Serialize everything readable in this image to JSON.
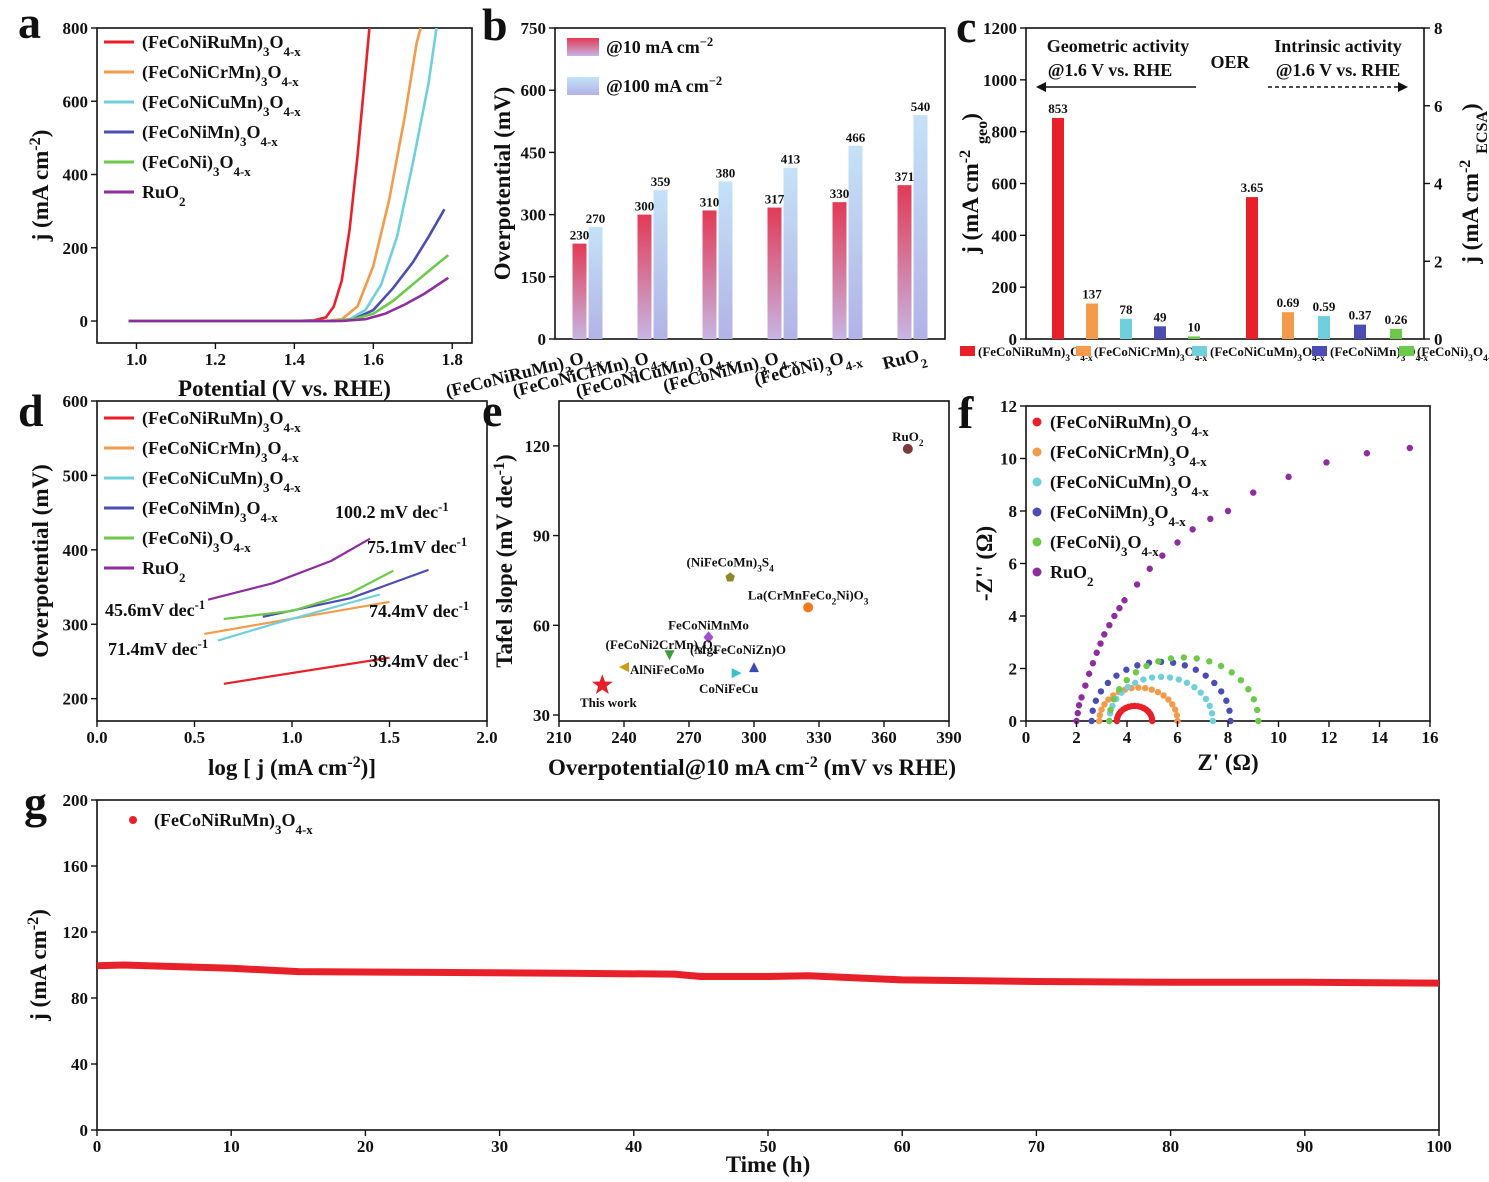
{
  "panels": {
    "a": "a",
    "b": "b",
    "c": "c",
    "d": "d",
    "e": "e",
    "f": "f",
    "g": "g"
  },
  "colors": {
    "FeCoNiRuMn": "#e8202a",
    "FeCoNiCrMn": "#f39a4b",
    "FeCoNiCuMn": "#6fd0dc",
    "FeCoNiMn": "#4b4db3",
    "FeCoNi": "#6cc94a",
    "RuO2": "#8e2d9e"
  },
  "chart_data": [
    {
      "panel": "a",
      "type": "line",
      "xlabel": "Potential (V vs. RHE)",
      "ylabel": "j (mA cm^-2)",
      "xlim": [
        0.9,
        1.85
      ],
      "ylim": [
        -60,
        800
      ],
      "xticks": [
        "1.0",
        "1.2",
        "1.4",
        "1.6",
        "1.8"
      ],
      "yticks": [
        "0",
        "200",
        "400",
        "600",
        "800"
      ],
      "series": [
        {
          "name": "(FeCoNiRuMn)3O4-x",
          "key": "FeCoNiRuMn",
          "points": [
            [
              0.98,
              0
            ],
            [
              1.4,
              0
            ],
            [
              1.45,
              2
            ],
            [
              1.48,
              10
            ],
            [
              1.5,
              40
            ],
            [
              1.52,
              110
            ],
            [
              1.54,
              250
            ],
            [
              1.56,
              450
            ],
            [
              1.58,
              680
            ],
            [
              1.59,
              800
            ]
          ]
        },
        {
          "name": "(FeCoNiCrMn)3O4-x",
          "key": "FeCoNiCrMn",
          "points": [
            [
              0.98,
              0
            ],
            [
              1.48,
              0
            ],
            [
              1.52,
              5
            ],
            [
              1.56,
              40
            ],
            [
              1.6,
              150
            ],
            [
              1.64,
              330
            ],
            [
              1.68,
              560
            ],
            [
              1.71,
              760
            ],
            [
              1.72,
              800
            ]
          ]
        },
        {
          "name": "(FeCoNiCuMn)3O4-x",
          "key": "FeCoNiCuMn",
          "points": [
            [
              0.98,
              0
            ],
            [
              1.5,
              0
            ],
            [
              1.54,
              5
            ],
            [
              1.58,
              30
            ],
            [
              1.62,
              100
            ],
            [
              1.66,
              230
            ],
            [
              1.7,
              430
            ],
            [
              1.74,
              650
            ],
            [
              1.76,
              800
            ]
          ]
        },
        {
          "name": "(FeCoNiMn)3O4-x",
          "key": "FeCoNiMn",
          "points": [
            [
              0.98,
              0
            ],
            [
              1.5,
              0
            ],
            [
              1.55,
              5
            ],
            [
              1.6,
              30
            ],
            [
              1.65,
              90
            ],
            [
              1.7,
              160
            ],
            [
              1.74,
              230
            ],
            [
              1.78,
              305
            ]
          ]
        },
        {
          "name": "(FeCoNi)3O4-x",
          "key": "FeCoNi",
          "points": [
            [
              0.98,
              0
            ],
            [
              1.5,
              0
            ],
            [
              1.55,
              5
            ],
            [
              1.6,
              20
            ],
            [
              1.65,
              55
            ],
            [
              1.7,
              100
            ],
            [
              1.75,
              145
            ],
            [
              1.79,
              180
            ]
          ]
        },
        {
          "name": "RuO2",
          "key": "RuO2",
          "points": [
            [
              0.98,
              0
            ],
            [
              1.52,
              0
            ],
            [
              1.58,
              5
            ],
            [
              1.63,
              20
            ],
            [
              1.68,
              45
            ],
            [
              1.73,
              75
            ],
            [
              1.79,
              118
            ]
          ]
        }
      ]
    },
    {
      "panel": "b",
      "type": "bar",
      "ylabel": "Overpotential (mV)",
      "ylim": [
        0,
        750
      ],
      "yticks": [
        "0",
        "150",
        "300",
        "450",
        "600",
        "750"
      ],
      "categories": [
        "(FeCoNiRuMn)3O4-x",
        "(FeCoNiCrMn)3O4-x",
        "(FeCoNiCuMn)3O4-x",
        "(FeCoNiMn)3O4-x",
        "(FeCoNi)3O4-x",
        "RuO2"
      ],
      "series": [
        {
          "name": "@10 mA cm-2",
          "values": [
            230,
            300,
            310,
            317,
            330,
            371
          ],
          "color": "#e23a55"
        },
        {
          "name": "@100 mA cm-2",
          "values": [
            270,
            359,
            380,
            413,
            466,
            540
          ],
          "color": "#a9c8ee"
        }
      ]
    },
    {
      "panel": "c",
      "type": "bar",
      "ylabel_left": "j (mA cm^-2 geo)",
      "ylabel_right": "j (mA cm^-2 ECSA)",
      "ylim_left": [
        0,
        1200
      ],
      "ylim_right": [
        0,
        8
      ],
      "yticks_left": [
        "0",
        "200",
        "400",
        "600",
        "800",
        "1000",
        "1200"
      ],
      "yticks_right": [
        "0",
        "2",
        "4",
        "6",
        "8"
      ],
      "title": "OER",
      "annot_left": [
        "Geometric activity",
        "@1.6 V vs. RHE"
      ],
      "annot_right": [
        "Intrinsic activity",
        "@1.6 V vs. RHE"
      ],
      "categories": [
        "(FeCoNiRuMn)3O4-x",
        "(FeCoNiCrMn)3O4-x",
        "(FeCoNiCuMn)3O4-x",
        "(FeCoNiMn)3O4-x",
        "(FeCoNi)3O4-x"
      ],
      "geometric": [
        853,
        137,
        78,
        49,
        10
      ],
      "geometric_labels": [
        "853",
        "137",
        "78",
        "49",
        "10"
      ],
      "intrinsic": [
        3.65,
        0.69,
        0.59,
        0.37,
        0.26
      ],
      "intrinsic_labels": [
        "3.65",
        "0.69",
        "0.59",
        "0.37",
        "0.26"
      ]
    },
    {
      "panel": "d",
      "type": "line",
      "xlabel": "log [ j (mA cm^-2)]",
      "ylabel": "Overpotential (mV)",
      "xlim": [
        0.0,
        2.0
      ],
      "ylim": [
        170,
        600
      ],
      "xticks": [
        "0.0",
        "0.5",
        "1.0",
        "1.5",
        "2.0"
      ],
      "yticks": [
        "200",
        "300",
        "400",
        "500",
        "600"
      ],
      "series": [
        {
          "name": "(FeCoNiRuMn)3O4-x",
          "key": "FeCoNiRuMn",
          "points": [
            [
              0.65,
              220
            ],
            [
              1.5,
              255
            ]
          ],
          "label": "39.4mV dec-1"
        },
        {
          "name": "(FeCoNiCrMn)3O4-x",
          "key": "FeCoNiCrMn",
          "points": [
            [
              0.55,
              287
            ],
            [
              1.5,
              330
            ]
          ],
          "label": "45.6mV dec-1"
        },
        {
          "name": "(FeCoNiCuMn)3O4-x",
          "key": "FeCoNiCuMn",
          "points": [
            [
              0.62,
              278
            ],
            [
              0.9,
              300
            ],
            [
              1.45,
              340
            ]
          ],
          "label": "71.4mV dec-1"
        },
        {
          "name": "(FeCoNiMn)3O4-x",
          "key": "FeCoNiMn",
          "points": [
            [
              0.85,
              310
            ],
            [
              1.3,
              335
            ],
            [
              1.7,
              373
            ]
          ],
          "label": "74.4mV dec-1"
        },
        {
          "name": "(FeCoNi)3O4-x",
          "key": "FeCoNi",
          "points": [
            [
              0.65,
              307
            ],
            [
              1.0,
              318
            ],
            [
              1.3,
              342
            ],
            [
              1.52,
              372
            ]
          ],
          "label": "75.1mV dec-1"
        },
        {
          "name": "RuO2",
          "key": "RuO2",
          "points": [
            [
              0.57,
              333
            ],
            [
              0.9,
              355
            ],
            [
              1.2,
              385
            ],
            [
              1.4,
              415
            ]
          ],
          "label": "100.2 mV dec-1"
        }
      ]
    },
    {
      "panel": "e",
      "type": "scatter",
      "xlabel": "Overpotential@10 mA cm^-2 (mV vs RHE)",
      "ylabel": "Tafel slope (mV dec^-1)",
      "xlim": [
        210,
        390
      ],
      "ylim": [
        28,
        135
      ],
      "xticks": [
        "210",
        "240",
        "270",
        "300",
        "330",
        "360",
        "390"
      ],
      "yticks": [
        "30",
        "60",
        "90",
        "120"
      ],
      "points": [
        {
          "label": "RuO2",
          "x": 371,
          "y": 119,
          "color": "#7a3a3a",
          "marker": "circle"
        },
        {
          "label": "(NiFeCoMn)3S4",
          "x": 289,
          "y": 76,
          "color": "#8a8a2a",
          "marker": "pentagon"
        },
        {
          "label": "La(CrMnFeCo2Ni)O3",
          "x": 325,
          "y": 66,
          "color": "#f07a1c",
          "marker": "circle"
        },
        {
          "label": "FeCoNiMnMo",
          "x": 279,
          "y": 56,
          "color": "#a04fcf",
          "marker": "diamond"
        },
        {
          "label": "(FeCoNi2CrMn)3O4",
          "x": 261,
          "y": 50,
          "color": "#3aa03a",
          "marker": "tri-down"
        },
        {
          "label": "(MgFeCoNiZn)O",
          "x": 300,
          "y": 46,
          "color": "#3a4ab0",
          "marker": "tri-up"
        },
        {
          "label": "AlNiFeCoMo",
          "x": 240,
          "y": 46,
          "color": "#d09a1a",
          "marker": "tri-left"
        },
        {
          "label": "CoNiFeCu",
          "x": 292,
          "y": 44,
          "color": "#3cc0d0",
          "marker": "tri-right"
        },
        {
          "label": "This work",
          "x": 230,
          "y": 40,
          "color": "#e8202a",
          "marker": "star"
        }
      ]
    },
    {
      "panel": "f",
      "type": "scatter",
      "xlabel": "Z' (Ω)",
      "ylabel": "-Z'' (Ω)",
      "xlim": [
        0,
        16
      ],
      "ylim": [
        0,
        12
      ],
      "xticks": [
        "0",
        "2",
        "4",
        "6",
        "8",
        "10",
        "12",
        "14",
        "16"
      ],
      "yticks": [
        "0",
        "2",
        "4",
        "6",
        "8",
        "10",
        "12"
      ],
      "series": [
        {
          "name": "(FeCoNiRuMn)3O4-x",
          "key": "FeCoNiRuMn",
          "x0": 3.6,
          "x1": 5.0
        },
        {
          "name": "(FeCoNiCrMn)3O4-x",
          "key": "FeCoNiCrMn",
          "x0": 2.9,
          "x1": 6.0
        },
        {
          "name": "(FeCoNiCuMn)3O4-x",
          "key": "FeCoNiCuMn",
          "x0": 3.3,
          "x1": 7.4
        },
        {
          "name": "(FeCoNiMn)3O4-x",
          "key": "FeCoNiMn",
          "x0": 2.6,
          "x1": 8.1
        },
        {
          "name": "(FeCoNi)3O4-x",
          "key": "FeCoNi",
          "x0": 3.3,
          "x1": 9.2
        },
        {
          "name": "RuO2",
          "key": "RuO2",
          "x0": 2.0,
          "x1": 15.2
        }
      ]
    },
    {
      "panel": "g",
      "type": "line",
      "xlabel": "Time (h)",
      "ylabel": "j (mA cm^-2)",
      "xlim": [
        0,
        100
      ],
      "ylim": [
        0,
        200
      ],
      "xticks": [
        "0",
        "10",
        "20",
        "30",
        "40",
        "50",
        "60",
        "70",
        "80",
        "90",
        "100"
      ],
      "yticks": [
        "0",
        "40",
        "80",
        "120",
        "160",
        "200"
      ],
      "series": [
        {
          "name": "(FeCoNiRuMn)3O4-x",
          "key": "FeCoNiRuMn",
          "points": [
            [
              0,
              99.5
            ],
            [
              2,
              100
            ],
            [
              10,
              98
            ],
            [
              15,
              96
            ],
            [
              25,
              95.5
            ],
            [
              35,
              95
            ],
            [
              43,
              94.5
            ],
            [
              45,
              93
            ],
            [
              50,
              93
            ],
            [
              53,
              93.5
            ],
            [
              60,
              91
            ],
            [
              70,
              90
            ],
            [
              80,
              89.5
            ],
            [
              90,
              89.5
            ],
            [
              100,
              89
            ]
          ]
        }
      ]
    }
  ]
}
